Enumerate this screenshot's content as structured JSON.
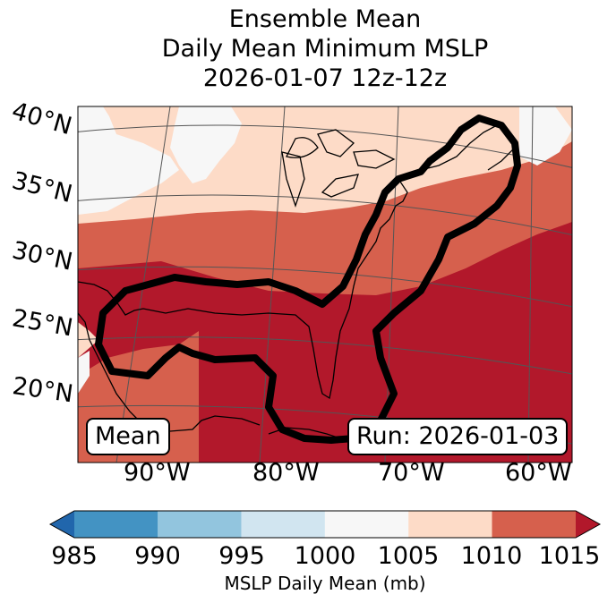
{
  "title": {
    "line1": "Ensemble Mean",
    "line2": "Daily Mean Minimum MSLP",
    "line3": "2026-01-07 12z-12z"
  },
  "latitude_labels": [
    "40°N",
    "35°N",
    "30°N",
    "25°N",
    "20°N"
  ],
  "longitude_labels": [
    "90°W",
    "80°W",
    "70°W",
    "60°W"
  ],
  "left_box_label": "Mean",
  "run_label": "Run: 2026-01-03",
  "colorbar": {
    "ticks": [
      "985",
      "990",
      "995",
      "1000",
      "1005",
      "1010",
      "1015"
    ],
    "label": "MSLP Daily Mean (mb)",
    "bin_colors": [
      "#2166ac",
      "#4393c3",
      "#92c5de",
      "#d1e5f0",
      "#f7f7f7",
      "#fddbc7",
      "#d6604d",
      "#b2182b"
    ]
  },
  "colors": {
    "lt1005": "#f7f7f7",
    "range1005_1010": "#fddbc7",
    "range1010_1015": "#d6604d",
    "gt1015": "#b2182b",
    "contour": "#000000"
  }
}
